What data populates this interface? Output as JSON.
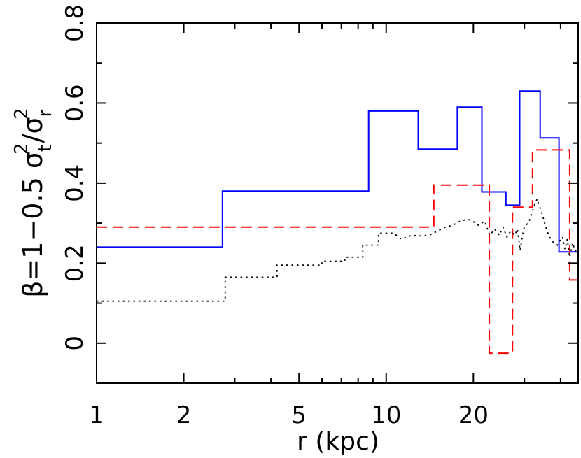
{
  "chart_data": {
    "type": "line",
    "title": "",
    "x_scale": "log",
    "xlim": [
      1,
      46
    ],
    "ylim": [
      -0.1,
      0.8
    ],
    "xlabel": "r (kpc)",
    "ylabel": {
      "pre": "β=1−0.5 σ",
      "sub1": "t",
      "sup1": "2",
      "mid": "/σ",
      "sub2": "r",
      "sup2": "2"
    },
    "x_ticks": [
      {
        "value": 1,
        "label": "1"
      },
      {
        "value": 2,
        "label": "2"
      },
      {
        "value": 5,
        "label": "5"
      },
      {
        "value": 10,
        "label": "10"
      },
      {
        "value": 20,
        "label": "20"
      }
    ],
    "y_ticks": [
      {
        "value": 0,
        "label": "0"
      },
      {
        "value": 0.2,
        "label": "0.2"
      },
      {
        "value": 0.4,
        "label": "0.4"
      },
      {
        "value": 0.6,
        "label": "0.6"
      },
      {
        "value": 0.8,
        "label": "0.8"
      }
    ],
    "grid": false,
    "series": [
      {
        "style": "solid",
        "color": "#0000ff",
        "steps": [
          {
            "x0": 1.0,
            "x1": 2.72,
            "y": 0.24
          },
          {
            "x0": 2.72,
            "x1": 8.7,
            "y": 0.38
          },
          {
            "x0": 8.7,
            "x1": 12.9,
            "y": 0.58
          },
          {
            "x0": 12.9,
            "x1": 17.6,
            "y": 0.485
          },
          {
            "x0": 17.6,
            "x1": 21.4,
            "y": 0.59
          },
          {
            "x0": 21.4,
            "x1": 25.9,
            "y": 0.378
          },
          {
            "x0": 25.9,
            "x1": 28.9,
            "y": 0.345
          },
          {
            "x0": 28.9,
            "x1": 34.0,
            "y": 0.63
          },
          {
            "x0": 34.0,
            "x1": 39.5,
            "y": 0.513
          },
          {
            "x0": 39.5,
            "x1": 46.0,
            "y": 0.228
          }
        ]
      },
      {
        "style": "dashed",
        "color": "#ff0000",
        "steps": [
          {
            "x0": 1.0,
            "x1": 14.6,
            "y": 0.29
          },
          {
            "x0": 14.6,
            "x1": 22.7,
            "y": 0.395
          },
          {
            "x0": 22.7,
            "x1": 27.3,
            "y": -0.025
          },
          {
            "x0": 27.3,
            "x1": 32.0,
            "y": 0.34
          },
          {
            "x0": 32.0,
            "x1": 43.0,
            "y": 0.483
          },
          {
            "x0": 43.0,
            "x1": 46.0,
            "y": 0.158
          }
        ]
      },
      {
        "style": "dotted",
        "color": "#000000",
        "points": [
          [
            1.0,
            0.105
          ],
          [
            2.78,
            0.105
          ],
          [
            2.78,
            0.165
          ],
          [
            4.2,
            0.165
          ],
          [
            4.2,
            0.195
          ],
          [
            6.0,
            0.195
          ],
          [
            6.0,
            0.205
          ],
          [
            7.2,
            0.205
          ],
          [
            7.2,
            0.215
          ],
          [
            8.3,
            0.215
          ],
          [
            8.3,
            0.245
          ],
          [
            9.4,
            0.245
          ],
          [
            9.4,
            0.275
          ],
          [
            10.6,
            0.275
          ],
          [
            11.3,
            0.26
          ],
          [
            12.3,
            0.27
          ],
          [
            13.0,
            0.268
          ],
          [
            14.1,
            0.27
          ],
          [
            15.0,
            0.28
          ],
          [
            16.0,
            0.29
          ],
          [
            17.0,
            0.295
          ],
          [
            18.0,
            0.305
          ],
          [
            19.1,
            0.31
          ],
          [
            19.9,
            0.305
          ],
          [
            20.8,
            0.295
          ],
          [
            21.9,
            0.305
          ],
          [
            22.8,
            0.27
          ],
          [
            23.7,
            0.285
          ],
          [
            24.6,
            0.27
          ],
          [
            25.3,
            0.29
          ],
          [
            26.1,
            0.265
          ],
          [
            26.9,
            0.28
          ],
          [
            27.8,
            0.27
          ],
          [
            28.4,
            0.285
          ],
          [
            29.0,
            0.232
          ],
          [
            29.8,
            0.285
          ],
          [
            30.3,
            0.295
          ],
          [
            31.0,
            0.3
          ],
          [
            31.8,
            0.325
          ],
          [
            32.5,
            0.345
          ],
          [
            33.2,
            0.36
          ],
          [
            33.9,
            0.34
          ],
          [
            34.6,
            0.322
          ],
          [
            35.4,
            0.295
          ],
          [
            36.3,
            0.272
          ],
          [
            37.1,
            0.258
          ],
          [
            38.0,
            0.25
          ],
          [
            39.0,
            0.245
          ],
          [
            39.7,
            0.255
          ],
          [
            40.6,
            0.265
          ],
          [
            41.4,
            0.235
          ],
          [
            42.2,
            0.26
          ],
          [
            43.0,
            0.215
          ],
          [
            44.0,
            0.25
          ],
          [
            45.0,
            0.23
          ],
          [
            46.0,
            0.24
          ]
        ]
      }
    ]
  }
}
